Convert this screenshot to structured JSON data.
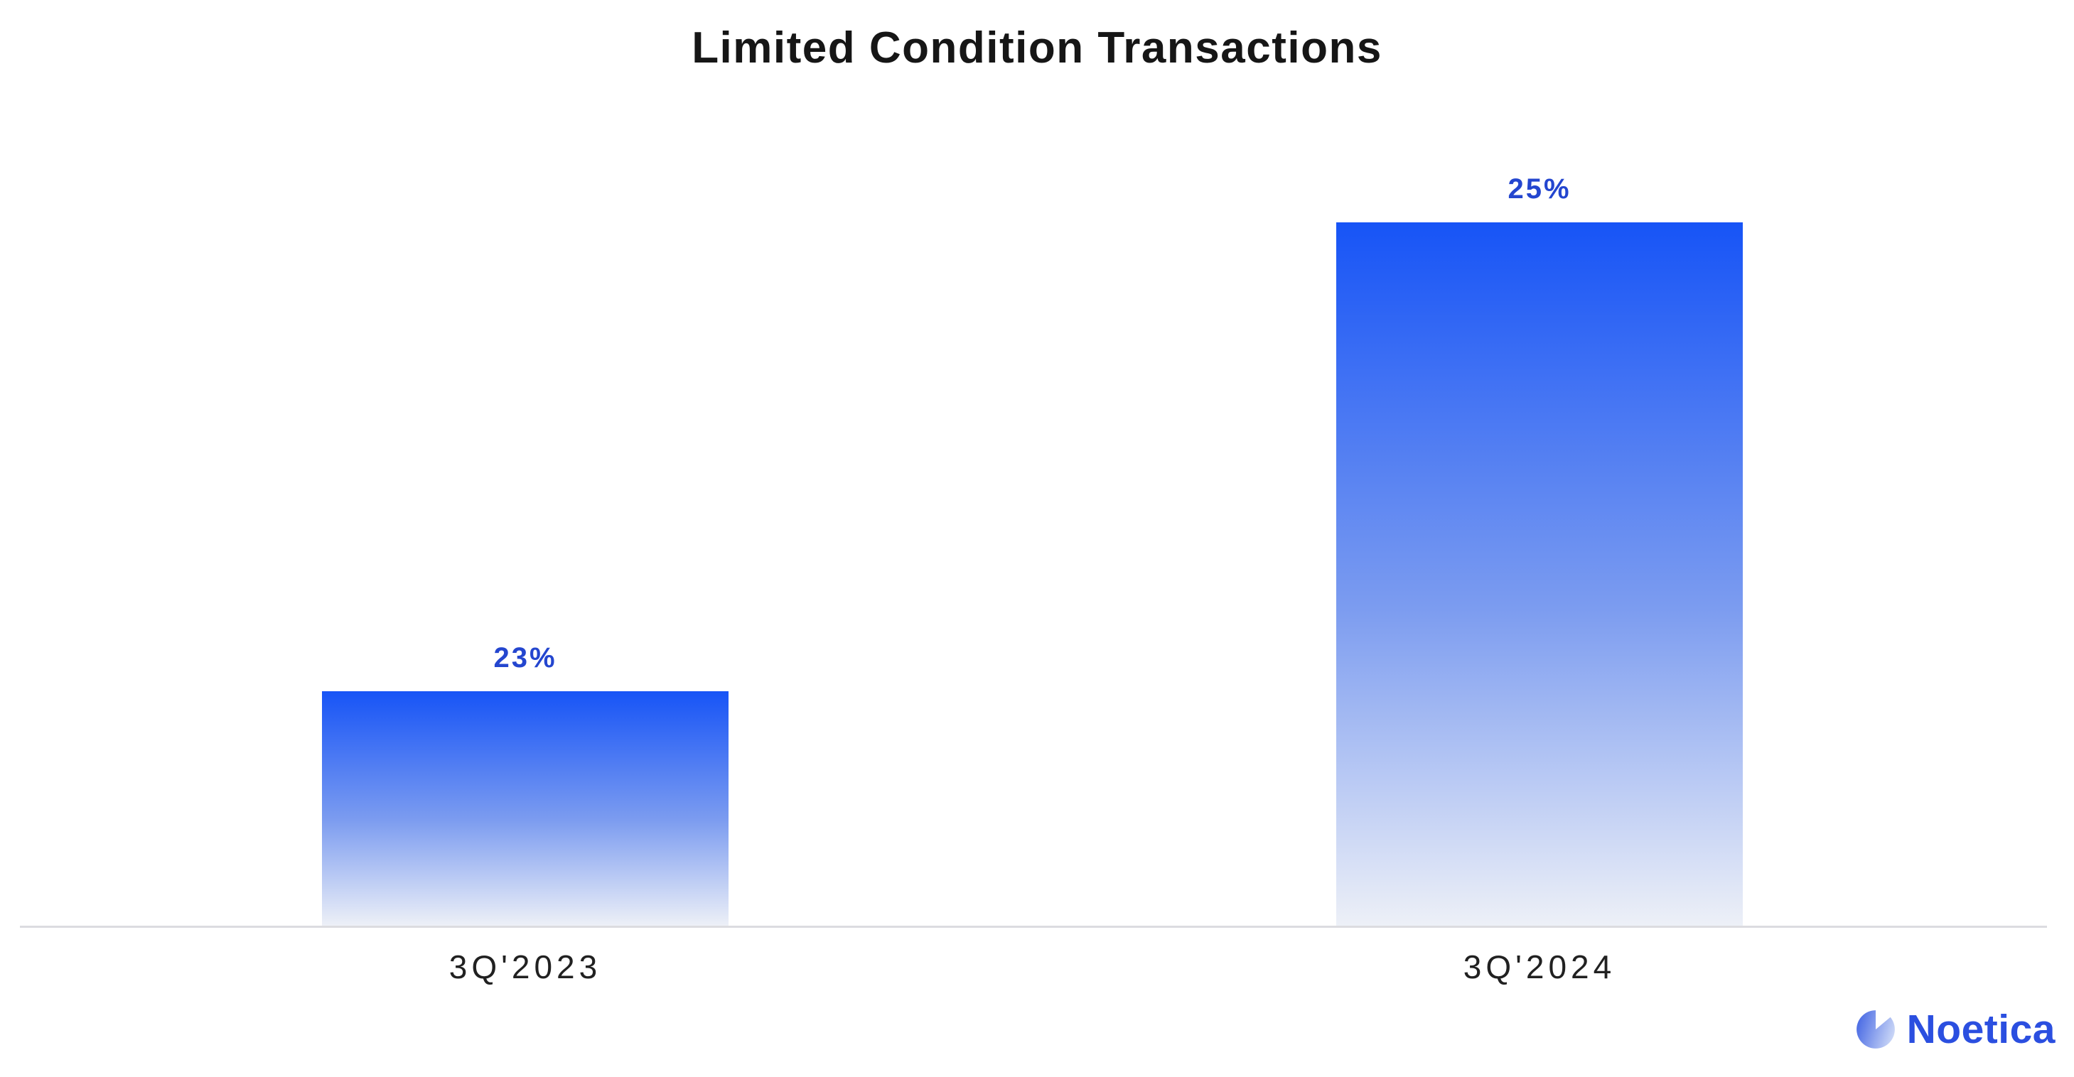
{
  "chart_data": {
    "type": "bar",
    "title": "Limited Condition Transactions",
    "categories": [
      "3Q'2023",
      "3Q'2024"
    ],
    "values": [
      23,
      25
    ],
    "value_labels": [
      "23%",
      "25%"
    ],
    "unit": "%",
    "xlabel": "",
    "ylabel": "",
    "ylim": [
      22,
      26
    ],
    "grid": false,
    "legend": "none",
    "colors": {
      "title": "#161616",
      "bar_gradient_top": "#1754f6",
      "bar_gradient_mid": "#7c9cf0",
      "bar_gradient_bottom": "#edf0f7",
      "value_label": "#2446cf",
      "category_label": "#212121",
      "axis_line": "#dcdce0"
    }
  },
  "branding": {
    "logo_text": "Noetica",
    "logo_color": "#2b4fe0",
    "icon": "pie-chart-icon",
    "icon_gradient_left": "#4a6be4",
    "icon_gradient_right": "#cdd9f7"
  }
}
